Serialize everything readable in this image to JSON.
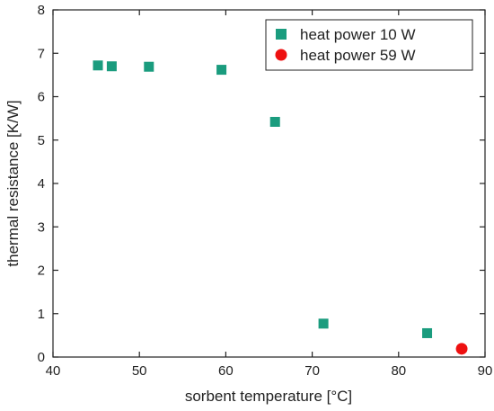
{
  "chart_data": {
    "type": "scatter",
    "title": "",
    "xlabel": "sorbent temperature [°C]",
    "ylabel": "thermal resistance [K/W]",
    "xlim": [
      40,
      90
    ],
    "ylim": [
      0,
      8
    ],
    "xticks": [
      "40",
      "50",
      "60",
      "70",
      "80",
      "90"
    ],
    "yticks": [
      "0",
      "1",
      "2",
      "3",
      "4",
      "5",
      "6",
      "7",
      "8"
    ],
    "grid": false,
    "legend_position": "top-right",
    "series": [
      {
        "name": "heat power 10 W",
        "marker": "square",
        "color": "#1a9c7e",
        "points": [
          {
            "x": 45.2,
            "y": 6.72
          },
          {
            "x": 46.8,
            "y": 6.7
          },
          {
            "x": 51.1,
            "y": 6.69
          },
          {
            "x": 59.5,
            "y": 6.62
          },
          {
            "x": 65.7,
            "y": 5.42
          },
          {
            "x": 71.3,
            "y": 0.77
          },
          {
            "x": 83.3,
            "y": 0.55
          }
        ]
      },
      {
        "name": "heat power 59 W",
        "marker": "circle",
        "color": "#ee1111",
        "points": [
          {
            "x": 87.3,
            "y": 0.19
          }
        ]
      }
    ]
  }
}
